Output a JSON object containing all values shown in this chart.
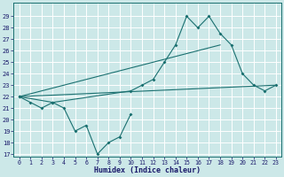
{
  "xlabel": "Humidex (Indice chaleur)",
  "xlim": [
    -0.5,
    23.5
  ],
  "ylim": [
    16.8,
    30.2
  ],
  "yticks": [
    17,
    18,
    19,
    20,
    21,
    22,
    23,
    24,
    25,
    26,
    27,
    28,
    29
  ],
  "xticks": [
    0,
    1,
    2,
    3,
    4,
    5,
    6,
    7,
    8,
    9,
    10,
    11,
    12,
    13,
    14,
    15,
    16,
    17,
    18,
    19,
    20,
    21,
    22,
    23
  ],
  "bg_color": "#cce8e8",
  "line_color": "#1a7070",
  "grid_color": "#ffffff",
  "line1_x": [
    0,
    1,
    2,
    3,
    4,
    5,
    6,
    7,
    8,
    9,
    10
  ],
  "line1_y": [
    22,
    21.5,
    21,
    21.5,
    21,
    19,
    19.5,
    17,
    18,
    18.5,
    20.5
  ],
  "line2_x": [
    0,
    18
  ],
  "line2_y": [
    22,
    26.5
  ],
  "line3_x": [
    0,
    3,
    10,
    11,
    12,
    13,
    14,
    15,
    16,
    17,
    18,
    19,
    20,
    21,
    22,
    23
  ],
  "line3_y": [
    22,
    21.5,
    22.5,
    23,
    23.5,
    25,
    26.5,
    29,
    28,
    29,
    27.5,
    26.5,
    24,
    23,
    22.5,
    23
  ],
  "line4_x": [
    0,
    23
  ],
  "line4_y": [
    22,
    23
  ]
}
